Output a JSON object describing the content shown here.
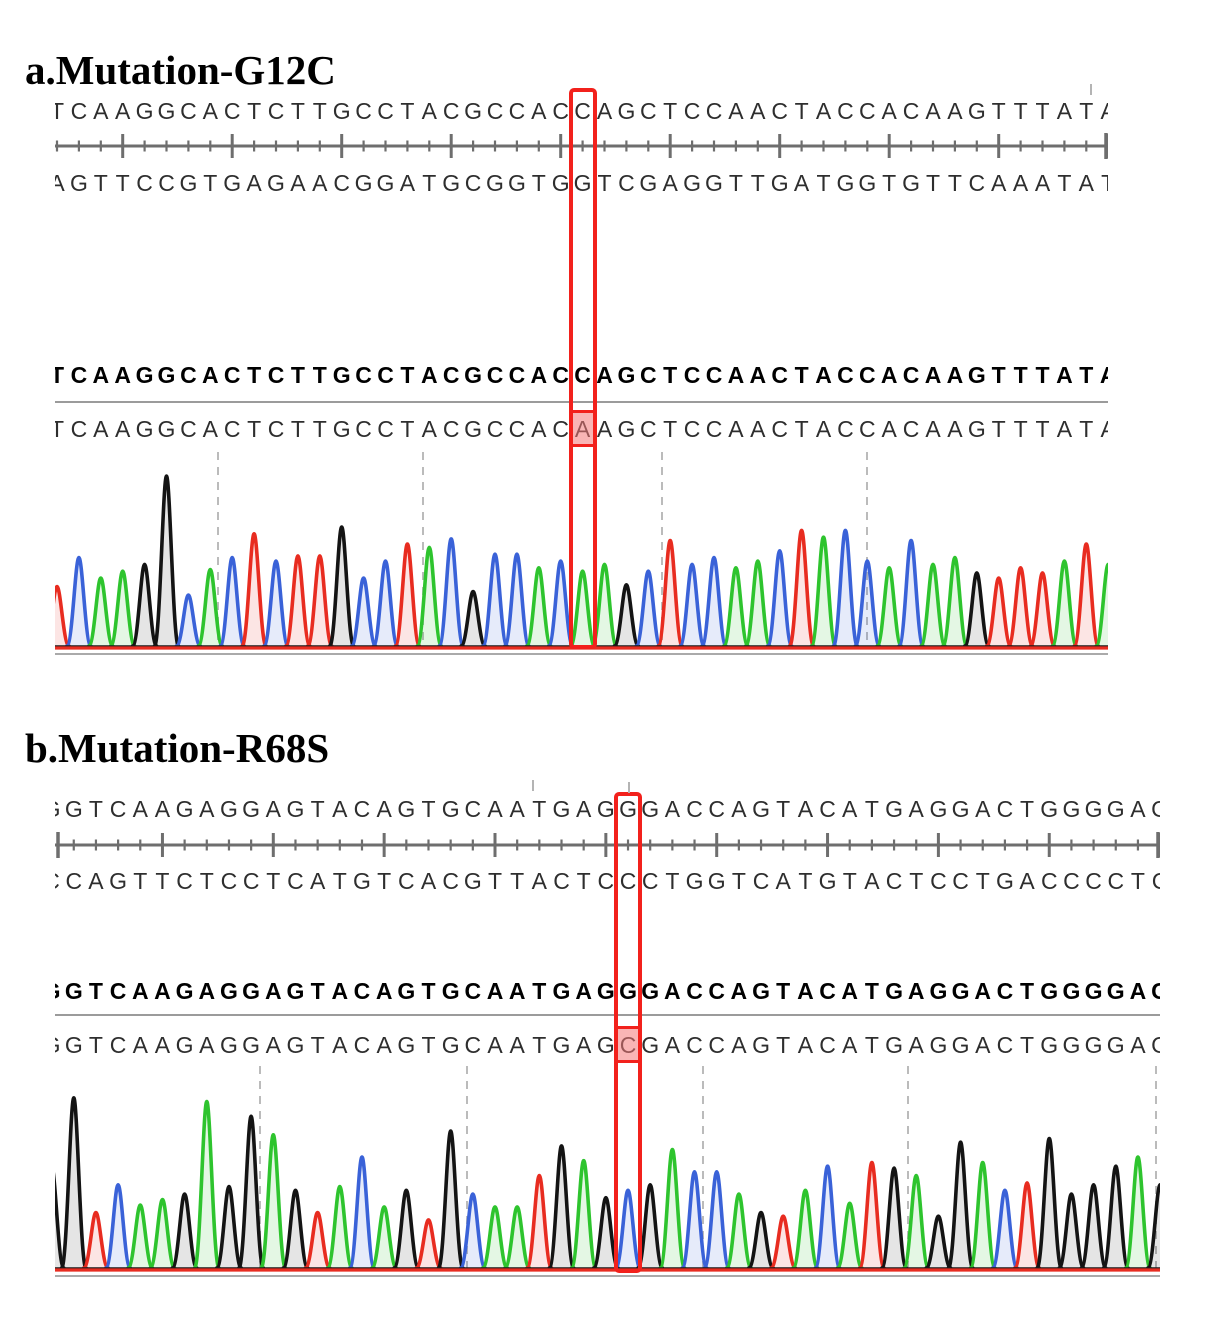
{
  "figure": {
    "kind": "sanger-sequencing-figure",
    "accent_red": "#f2211c",
    "ruler_color": "#6e6e6e",
    "separator_color": "#9b9b9b",
    "gridline_color": "#bbbbbb"
  },
  "base_colors": {
    "A": "#2ec42e",
    "C": "#3a62d8",
    "G": "#141414",
    "T": "#e82c20"
  },
  "panels": [
    {
      "id": "a",
      "title": "a.Mutation-G12C",
      "top_strand": "TCAAGGCACTCTTGCCTACGCCACCAGCTCCAACTACCACAAGTTTATA",
      "bottom_strand": "AGTTCCGTGAGAACGGATGCGGTGGTCGAGGTTGATGGTGTTCAAATAT",
      "reference": "TCAAGGCACTCTTGCCTACGCCACCAGCTCCAACTACCACAAGTTTATA",
      "sample": "TCAAGGCACTCTTGCCTACGCCACAAGCTCCAACTACCACAAGTTTATA",
      "mutation": {
        "index": 24,
        "reference_base": "C",
        "mutant_base": "A"
      },
      "peak_heights": [
        0.35,
        0.52,
        0.4,
        0.44,
        0.48,
        1.0,
        0.3,
        0.45,
        0.52,
        0.66,
        0.5,
        0.53,
        0.53,
        0.7,
        0.4,
        0.5,
        0.6,
        0.58,
        0.63,
        0.32,
        0.54,
        0.54,
        0.46,
        0.5,
        0.44,
        0.48,
        0.36,
        0.44,
        0.62,
        0.48,
        0.52,
        0.46,
        0.5,
        0.56,
        0.68,
        0.64,
        0.68,
        0.5,
        0.46,
        0.62,
        0.48,
        0.52,
        0.43,
        0.4,
        0.46,
        0.43,
        0.5,
        0.6,
        0.48
      ]
    },
    {
      "id": "b",
      "title": "b.Mutation-R68S",
      "top_strand": "GGTCAAGAGGAGTACAGTGCAATGAGGGACCAGTACATGAGGACTGGGGAG",
      "bottom_strand": "CCAGTTCTCCTCATGTCACGTTACTCCCTGGTCATGTACTCCTGACCCCTC",
      "reference": "GGTCAAGAGGAGTACAGTGCAATGAGGGACCAGTACATGAGGACTGGGGAG",
      "sample": "GGTCAAGAGGAGTACAGTGCAATGAGCGACCAGTACATGAGGACTGGGGAG",
      "mutation": {
        "index": 26,
        "reference_base": "G",
        "mutant_base": "C"
      },
      "peak_heights": [
        0.55,
        0.92,
        0.3,
        0.45,
        0.34,
        0.37,
        0.4,
        0.9,
        0.44,
        0.82,
        0.72,
        0.42,
        0.3,
        0.44,
        0.6,
        0.33,
        0.42,
        0.26,
        0.74,
        0.4,
        0.33,
        0.33,
        0.5,
        0.66,
        0.58,
        0.38,
        0.42,
        0.45,
        0.64,
        0.52,
        0.52,
        0.4,
        0.3,
        0.28,
        0.42,
        0.55,
        0.35,
        0.57,
        0.54,
        0.5,
        0.28,
        0.68,
        0.57,
        0.42,
        0.46,
        0.7,
        0.4,
        0.45,
        0.55,
        0.6,
        0.45
      ]
    }
  ],
  "chart_data": [
    {
      "type": "line",
      "subtype": "sanger-chromatogram",
      "title": "a.Mutation-G12C",
      "x_bases": "TCAAGGCACTCTTGCCTACGCCACAAGCTCCAACTACCACAAGTTTATA",
      "peak_heights_rel": [
        0.35,
        0.52,
        0.4,
        0.44,
        0.48,
        1.0,
        0.3,
        0.45,
        0.52,
        0.66,
        0.5,
        0.53,
        0.53,
        0.7,
        0.4,
        0.5,
        0.6,
        0.58,
        0.63,
        0.32,
        0.54,
        0.54,
        0.46,
        0.5,
        0.44,
        0.48,
        0.36,
        0.44,
        0.62,
        0.48,
        0.52,
        0.46,
        0.5,
        0.56,
        0.68,
        0.64,
        0.68,
        0.5,
        0.46,
        0.62,
        0.48,
        0.52,
        0.43,
        0.4,
        0.46,
        0.43,
        0.5,
        0.6,
        0.48
      ],
      "trace_colors": {
        "A": "green",
        "C": "blue",
        "G": "black",
        "T": "red"
      },
      "mutation": {
        "index": 24,
        "reference_base": "C",
        "mutant_base": "A"
      },
      "legend_position": "none",
      "grid": "dashed-vertical"
    },
    {
      "type": "line",
      "subtype": "sanger-chromatogram",
      "title": "b.Mutation-R68S",
      "x_bases": "GGTCAAGAGGAGTACAGTGCAATGAGCGACCAGTACATGAGGACTGGGGAG",
      "peak_heights_rel": [
        0.55,
        0.92,
        0.3,
        0.45,
        0.34,
        0.37,
        0.4,
        0.9,
        0.44,
        0.82,
        0.72,
        0.42,
        0.3,
        0.44,
        0.6,
        0.33,
        0.42,
        0.26,
        0.74,
        0.4,
        0.33,
        0.33,
        0.5,
        0.66,
        0.58,
        0.38,
        0.42,
        0.45,
        0.64,
        0.52,
        0.52,
        0.4,
        0.3,
        0.28,
        0.42,
        0.55,
        0.35,
        0.57,
        0.54,
        0.5,
        0.28,
        0.68,
        0.57,
        0.42,
        0.46,
        0.7,
        0.4,
        0.45,
        0.55,
        0.6,
        0.45
      ],
      "trace_colors": {
        "A": "green",
        "C": "blue",
        "G": "black",
        "T": "red"
      },
      "mutation": {
        "index": 26,
        "reference_base": "G",
        "mutant_base": "C"
      },
      "legend_position": "none",
      "grid": "dashed-vertical"
    }
  ]
}
